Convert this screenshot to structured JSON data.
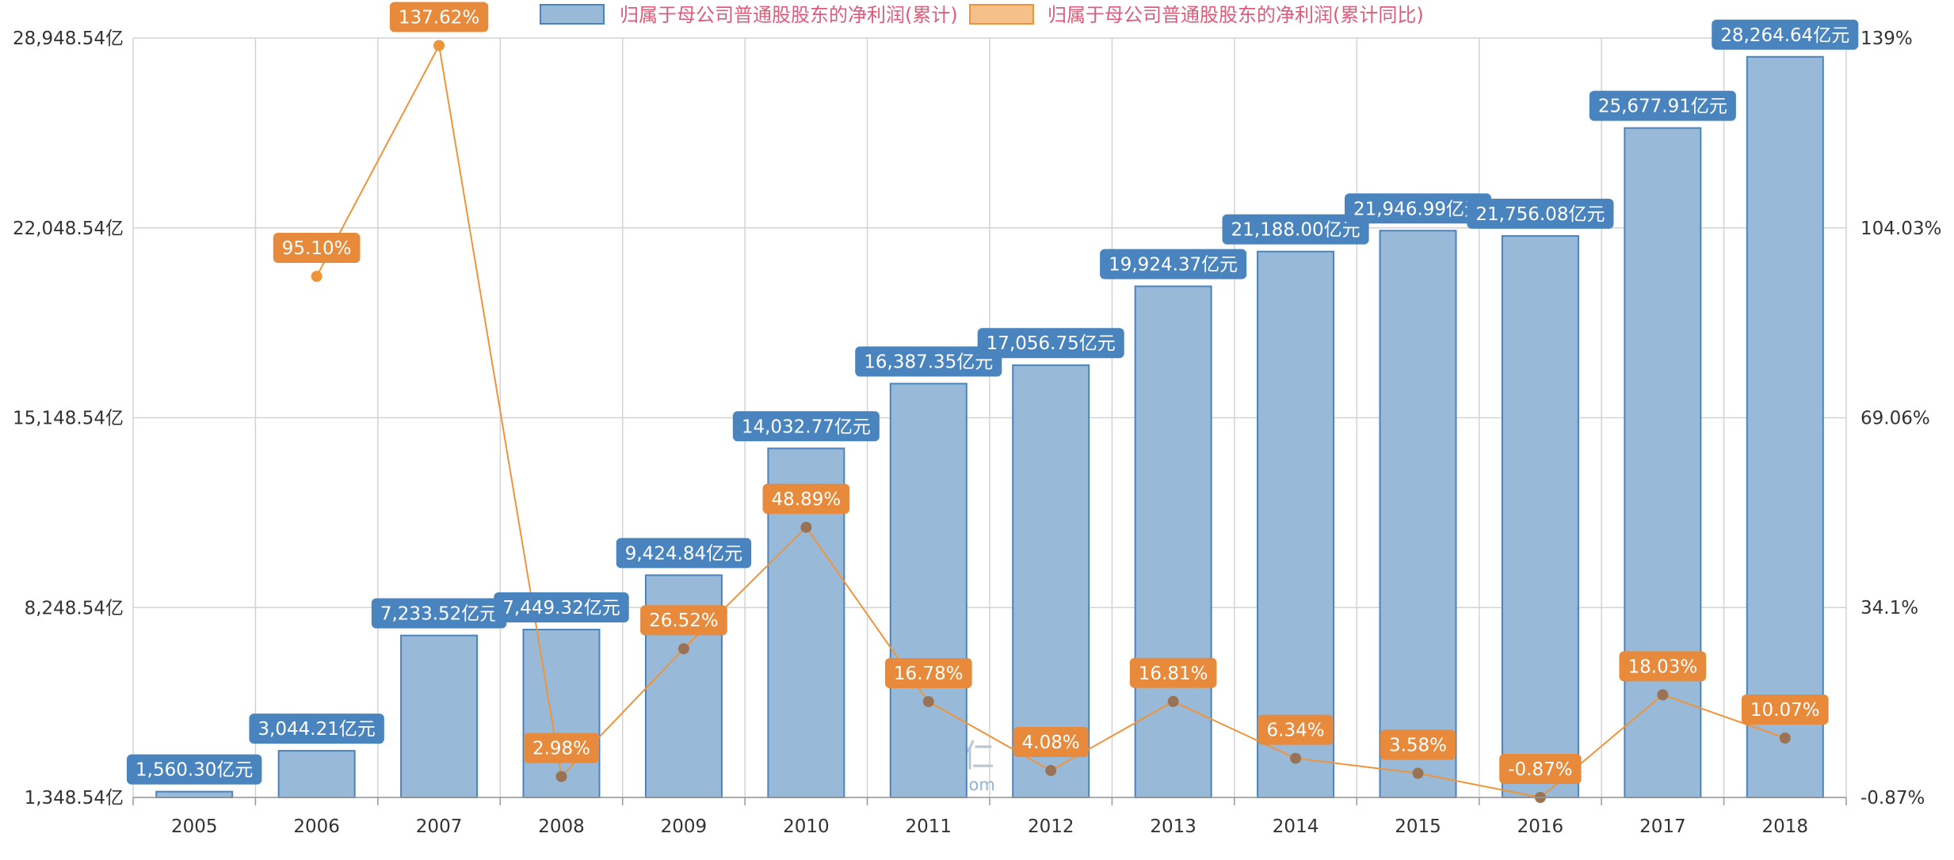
{
  "legend": {
    "bar_label": "归属于母公司普通股股东的净利润(累计)",
    "line_label": "归属于母公司普通股股东的净利润(累计同比)"
  },
  "watermark": {
    "logo": "理杏仁",
    "site": "lixinger.com"
  },
  "colors": {
    "bar_fill": "#98b9d8",
    "bar_stroke": "#4a84bf",
    "bar_tag": "#4a84bf",
    "line": "#f0943a",
    "line_tag": "#e78a3b",
    "legend_text": "#e05a79",
    "grid": "#d3d3d3"
  },
  "chart_data": {
    "type": "bar",
    "categories": [
      "2005",
      "2006",
      "2007",
      "2008",
      "2009",
      "2010",
      "2011",
      "2012",
      "2013",
      "2014",
      "2015",
      "2016",
      "2017",
      "2018"
    ],
    "series": [
      {
        "name": "归属于母公司普通股股东的净利润(累计)",
        "type": "bar",
        "axis": "left",
        "values": [
          1560.3,
          3044.21,
          7233.52,
          7449.32,
          9424.84,
          14032.77,
          16387.35,
          17056.75,
          19924.37,
          21188.0,
          21946.99,
          21756.08,
          25677.91,
          28264.64
        ],
        "labels": [
          "1,560.30亿元",
          "3,044.21亿元",
          "7,233.52亿元",
          "7,449.32亿元",
          "9,424.84亿元",
          "14,032.77亿元",
          "16,387.35亿元",
          "17,056.75亿元",
          "19,924.37亿元",
          "21,188.00亿元",
          "21,946.99亿元",
          "21,756.08亿元",
          "25,677.91亿元",
          "28,264.64亿元"
        ]
      },
      {
        "name": "归属于母公司普通股股东的净利润(累计同比)",
        "type": "line",
        "axis": "right",
        "values": [
          null,
          95.1,
          137.62,
          2.98,
          26.52,
          48.89,
          16.78,
          4.08,
          16.81,
          6.34,
          3.58,
          -0.87,
          18.03,
          10.07
        ],
        "labels": [
          "",
          "95.10%",
          "137.62%",
          "2.98%",
          "26.52%",
          "48.89%",
          "16.78%",
          "4.08%",
          "16.81%",
          "6.34%",
          "3.58%",
          "-0.87%",
          "18.03%",
          "10.07%"
        ]
      }
    ],
    "y_left": {
      "ticks": [
        1348.54,
        8248.54,
        15148.54,
        22048.54,
        28948.54
      ],
      "tick_labels": [
        "1,348.54亿",
        "8,248.54亿",
        "15,148.54亿",
        "22,048.54亿",
        "28,948.54亿"
      ],
      "range": [
        1348.54,
        28948.54
      ]
    },
    "y_right": {
      "ticks": [
        -0.87,
        34.1,
        69.06,
        104.03,
        139
      ],
      "tick_labels": [
        "-0.87%",
        "34.1%",
        "69.06%",
        "104.03%",
        "139%"
      ],
      "range": [
        -0.87,
        139
      ]
    },
    "grid": true,
    "legend_position": "top-center"
  }
}
